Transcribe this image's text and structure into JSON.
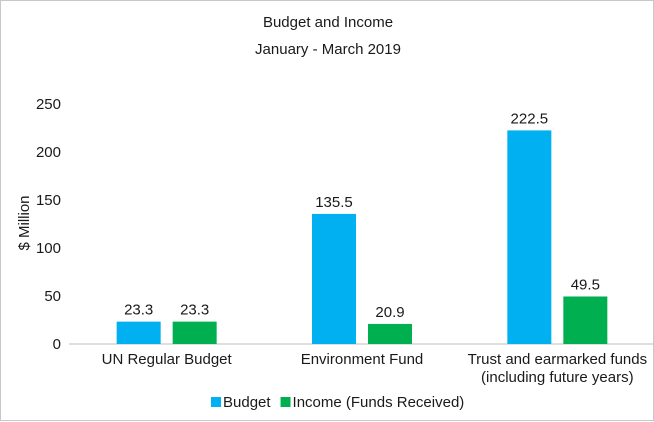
{
  "chart_data": {
    "type": "bar",
    "title": "Budget and Income",
    "subtitle": "January - March 2019",
    "ylabel": "$ Million",
    "xlabel": "",
    "ylim": [
      0,
      250
    ],
    "yticks": [
      0,
      50,
      100,
      150,
      200,
      250
    ],
    "grid": false,
    "legend_position": "bottom",
    "categories": [
      [
        "UN Regular Budget"
      ],
      [
        "Environment Fund"
      ],
      [
        "Trust and earmarked funds",
        "(including future years)"
      ]
    ],
    "series": [
      {
        "name": "Budget",
        "color": "#00b0f0",
        "values": [
          23.3,
          135.5,
          222.5
        ]
      },
      {
        "name": "Income (Funds Received)",
        "color": "#00b050",
        "values": [
          23.3,
          20.9,
          49.5
        ]
      }
    ]
  }
}
